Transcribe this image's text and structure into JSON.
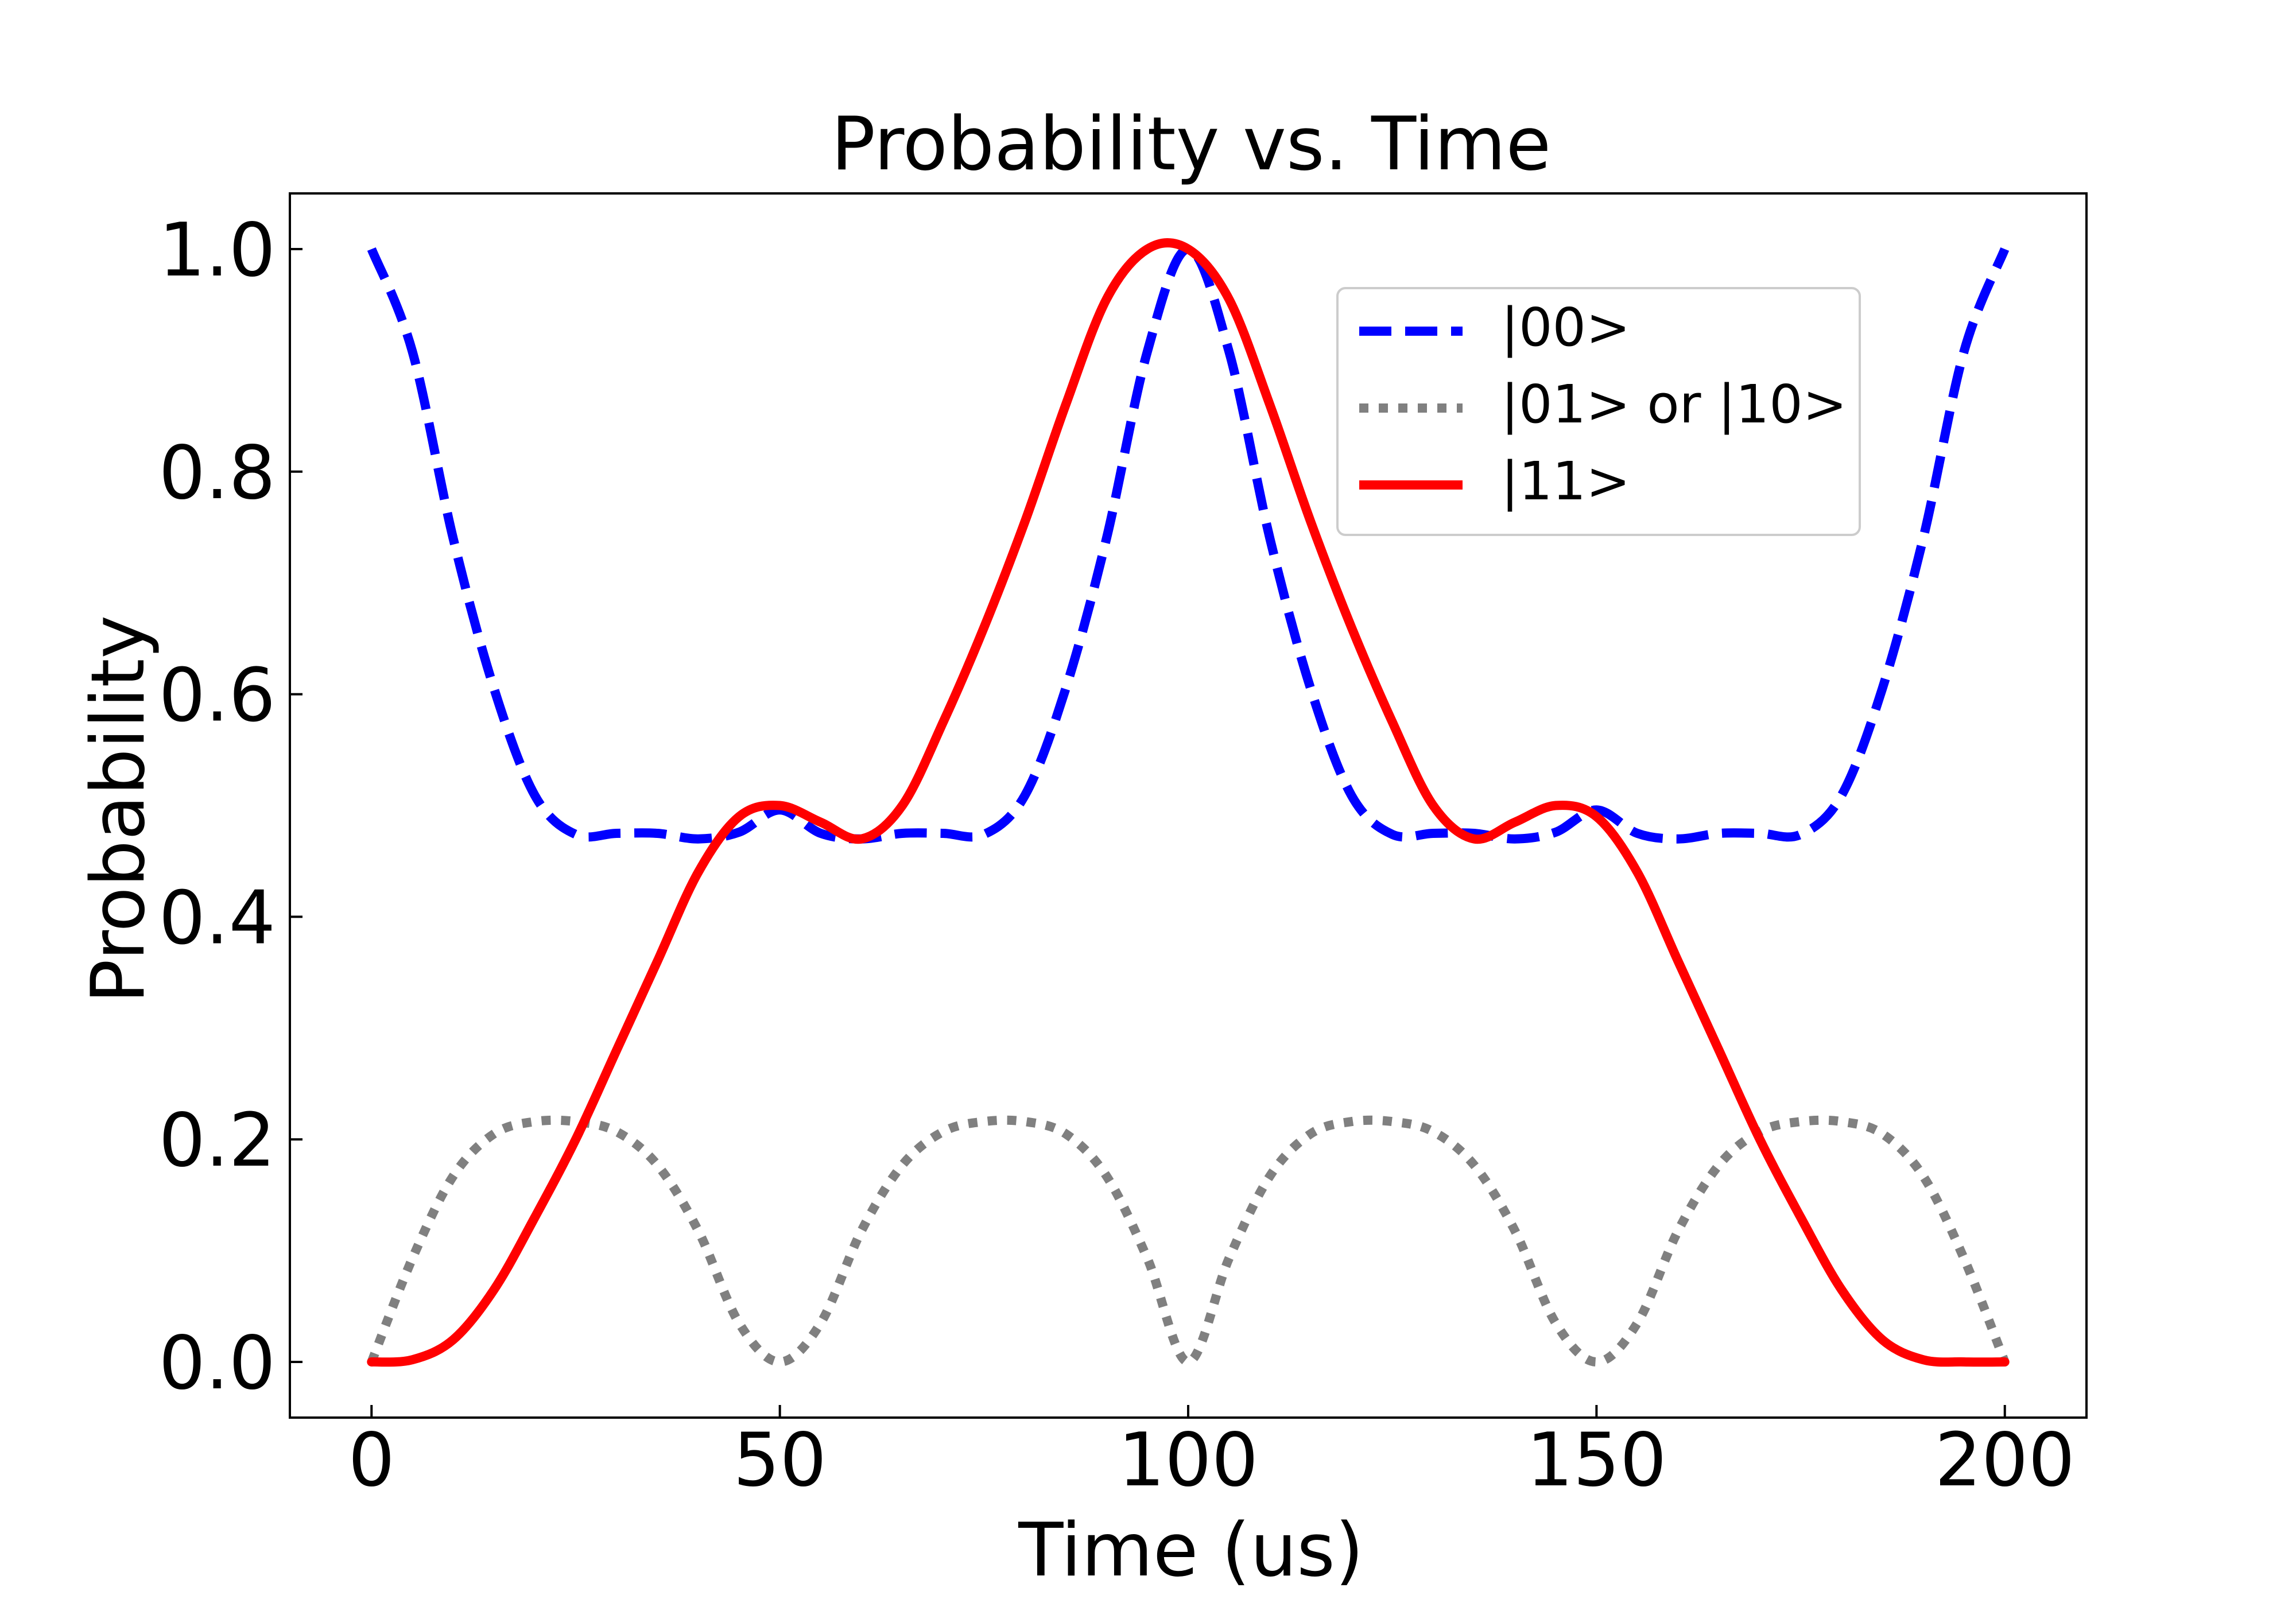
{
  "chart_data": {
    "type": "line",
    "title": "Probability vs. Time",
    "xlabel": "Time (us)",
    "ylabel": "Probability",
    "xlim": [
      -10,
      210
    ],
    "ylim": [
      -0.05,
      1.05
    ],
    "xticks": [
      0,
      50,
      100,
      150,
      200
    ],
    "xtick_labels": [
      "0",
      "50",
      "100",
      "150",
      "200"
    ],
    "yticks": [
      0.0,
      0.2,
      0.4,
      0.6,
      0.8,
      1.0
    ],
    "ytick_labels": [
      "0.0",
      "0.2",
      "0.4",
      "0.6",
      "0.8",
      "1.0"
    ],
    "grid": false,
    "legend_position": "upper-right",
    "x": [
      0,
      5,
      10,
      15,
      20,
      25,
      30,
      35,
      40,
      45,
      50,
      55,
      60,
      65,
      70,
      75,
      80,
      85,
      90,
      95,
      100,
      105,
      110,
      115,
      120,
      125,
      130,
      135,
      140,
      145,
      150,
      155,
      160,
      165,
      170,
      175,
      180,
      185,
      190,
      195,
      200
    ],
    "series": [
      {
        "name": "|00>",
        "label": "|00>",
        "color": "#0000ff",
        "style": "dashed",
        "values": [
          1.0,
          0.908,
          0.74,
          0.605,
          0.509,
          0.474,
          0.475,
          0.475,
          0.47,
          0.476,
          0.496,
          0.475,
          0.47,
          0.475,
          0.475,
          0.474,
          0.509,
          0.605,
          0.74,
          0.908,
          1.0,
          0.908,
          0.74,
          0.605,
          0.509,
          0.474,
          0.475,
          0.475,
          0.47,
          0.476,
          0.496,
          0.475,
          0.47,
          0.475,
          0.475,
          0.474,
          0.509,
          0.605,
          0.74,
          0.908,
          1.0
        ]
      },
      {
        "name": "|01> or |10>",
        "label": "|01> or |10>",
        "color": "#808080",
        "style": "dotted",
        "values": [
          0.0,
          0.093,
          0.167,
          0.205,
          0.216,
          0.216,
          0.207,
          0.177,
          0.118,
          0.035,
          0.0,
          0.035,
          0.118,
          0.177,
          0.207,
          0.216,
          0.216,
          0.205,
          0.167,
          0.093,
          0.0,
          0.093,
          0.167,
          0.205,
          0.216,
          0.216,
          0.207,
          0.177,
          0.118,
          0.035,
          0.0,
          0.035,
          0.118,
          0.177,
          0.207,
          0.216,
          0.216,
          0.205,
          0.167,
          0.093,
          0.0
        ]
      },
      {
        "name": "|11>",
        "label": "|11>",
        "color": "#ff0000",
        "style": "solid",
        "values": [
          0.0,
          0.002,
          0.02,
          0.065,
          0.13,
          0.2,
          0.28,
          0.36,
          0.44,
          0.49,
          0.5,
          0.485,
          0.47,
          0.5,
          0.575,
          0.66,
          0.755,
          0.86,
          0.955,
          1.0,
          1.0,
          0.955,
          0.86,
          0.755,
          0.66,
          0.575,
          0.5,
          0.47,
          0.485,
          0.5,
          0.49,
          0.44,
          0.36,
          0.28,
          0.2,
          0.13,
          0.065,
          0.02,
          0.002,
          0.0,
          0.0
        ]
      }
    ]
  }
}
